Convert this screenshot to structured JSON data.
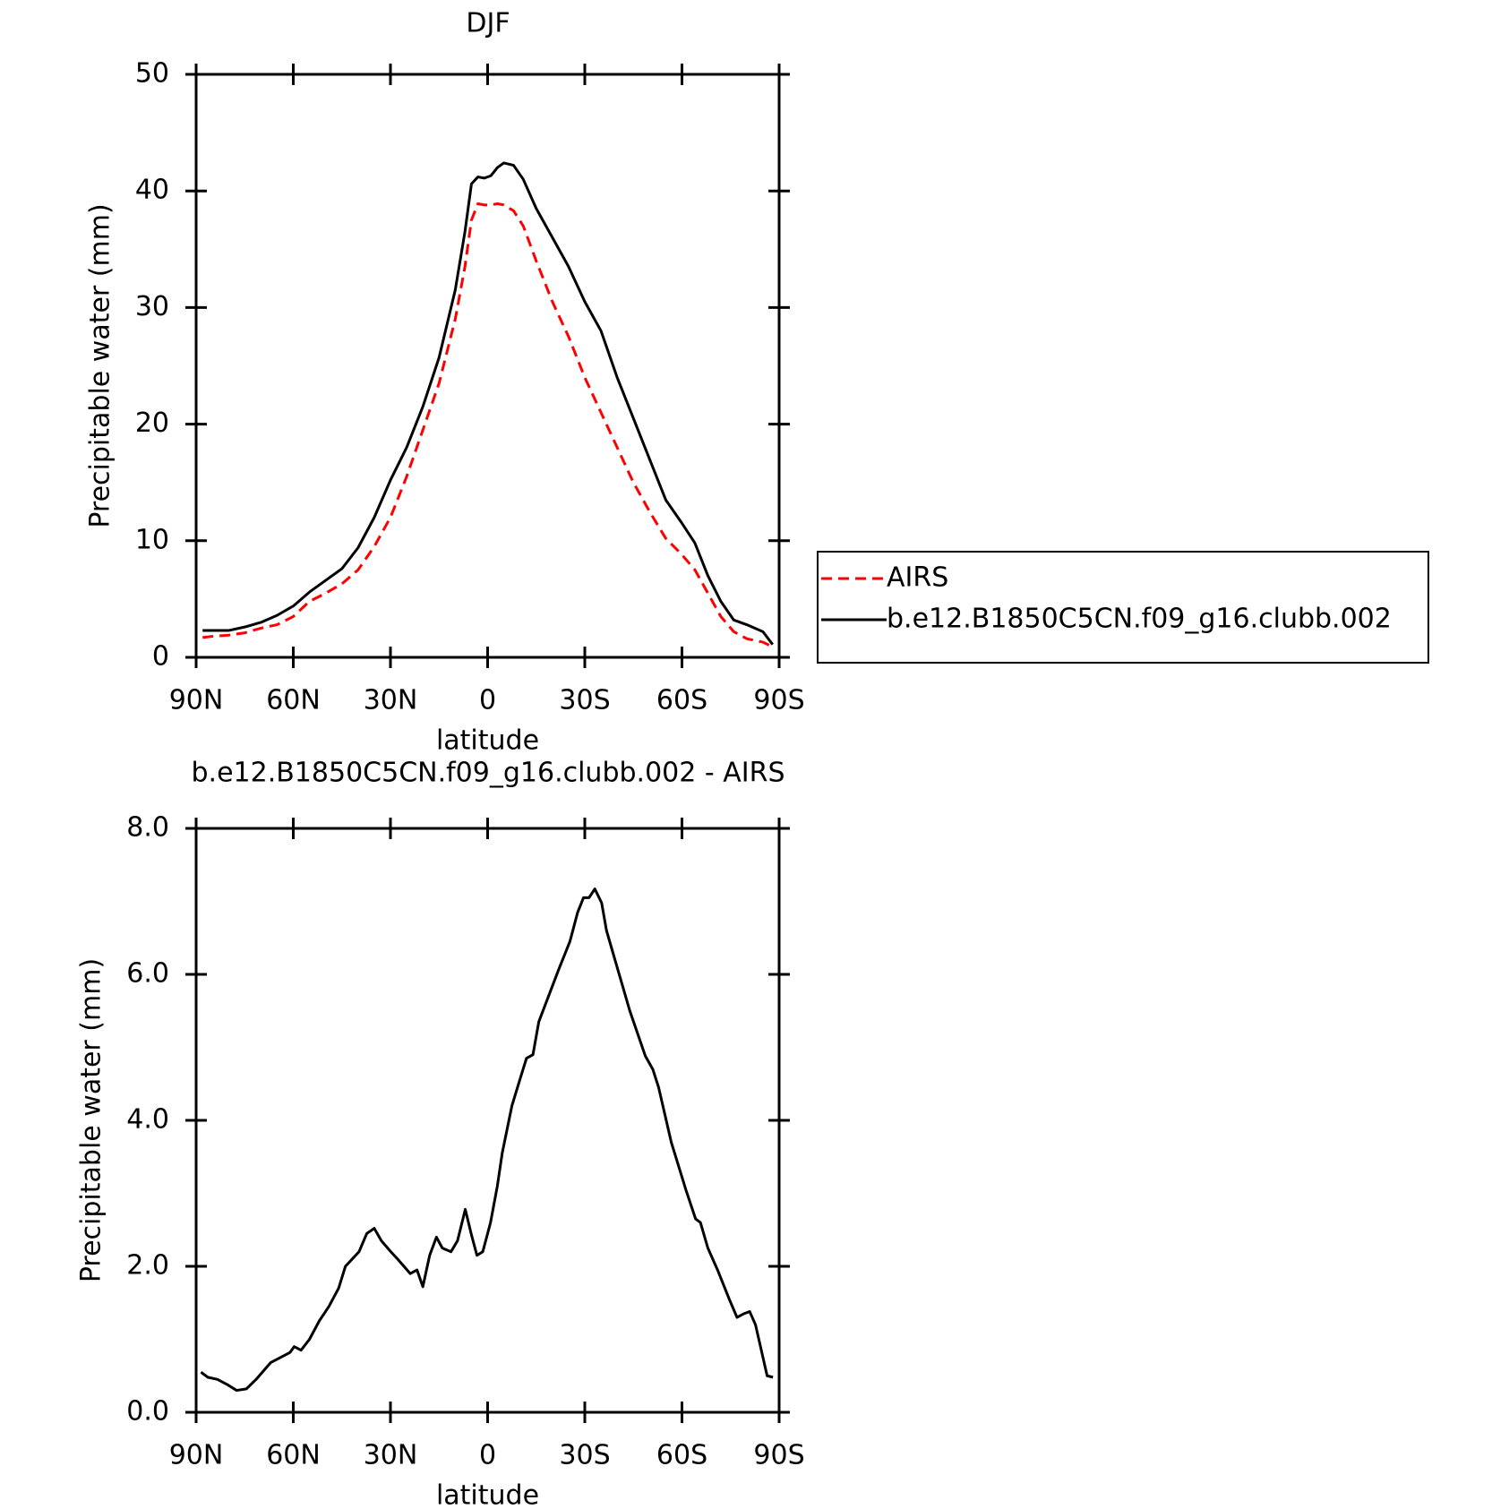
{
  "chart_data": [
    {
      "type": "line",
      "title": "DJF",
      "xlabel": "latitude",
      "ylabel": "Precipitable water (mm)",
      "xlim": [
        90,
        -90
      ],
      "ylim": [
        0,
        50
      ],
      "xticks": [
        {
          "value": 90,
          "label": "90N"
        },
        {
          "value": 60,
          "label": "60N"
        },
        {
          "value": 30,
          "label": "30N"
        },
        0,
        {
          "value": -30,
          "label": "30S"
        },
        {
          "value": -60,
          "label": "60S"
        },
        {
          "value": -90,
          "label": "90S"
        }
      ],
      "yticks": [
        0,
        10,
        20,
        30,
        40,
        50
      ],
      "legend": "right",
      "x": [
        88,
        85,
        80,
        75,
        70,
        65,
        60,
        55,
        50,
        45,
        40,
        35,
        30,
        25,
        20,
        15,
        10,
        7,
        5,
        3,
        1,
        -1,
        -3,
        -5,
        -8,
        -11,
        -15,
        -20,
        -25,
        -30,
        -35,
        -40,
        -45,
        -50,
        -55,
        -60,
        -64,
        -68,
        -72,
        -76,
        -80,
        -85,
        -88
      ],
      "series": [
        {
          "name": "AIRS",
          "color": "#ff0000",
          "linestyle": "dashed",
          "values": [
            1.7,
            1.8,
            1.9,
            2.1,
            2.5,
            2.8,
            3.5,
            4.8,
            5.5,
            6.3,
            7.5,
            9.5,
            12.0,
            15.5,
            19.5,
            23.5,
            29.0,
            33.5,
            37.5,
            38.9,
            38.8,
            38.8,
            38.9,
            38.8,
            38.3,
            37.0,
            34.0,
            30.5,
            27.5,
            24.0,
            21.0,
            18.0,
            15.0,
            12.5,
            10.2,
            8.8,
            7.5,
            5.5,
            3.5,
            2.2,
            1.6,
            1.3,
            0.9
          ]
        },
        {
          "name": "b.e12.B1850C5CN.f09_g16.clubb.002",
          "color": "#000000",
          "linestyle": "solid",
          "values": [
            2.3,
            2.3,
            2.3,
            2.6,
            3.0,
            3.6,
            4.4,
            5.6,
            6.6,
            7.6,
            9.4,
            12.0,
            15.2,
            18.0,
            21.5,
            25.7,
            31.5,
            36.5,
            40.6,
            41.2,
            41.1,
            41.3,
            42.0,
            42.4,
            42.2,
            41.0,
            38.5,
            36.0,
            33.5,
            30.5,
            28.0,
            24.0,
            20.5,
            17.0,
            13.5,
            11.5,
            9.8,
            7.0,
            4.8,
            3.2,
            2.8,
            2.2,
            1.1
          ]
        }
      ]
    },
    {
      "type": "line",
      "title": "b.e12.B1850C5CN.f09_g16.clubb.002 - AIRS",
      "xlabel": "latitude",
      "ylabel": "Precipitable water (mm)",
      "xlim": [
        90,
        -90
      ],
      "ylim": [
        0,
        8
      ],
      "xticks": [
        {
          "value": 90,
          "label": "90N"
        },
        {
          "value": 60,
          "label": "60N"
        },
        {
          "value": 30,
          "label": "30N"
        },
        0,
        {
          "value": -30,
          "label": "30S"
        },
        {
          "value": -60,
          "label": "60S"
        },
        {
          "value": -90,
          "label": "90S"
        }
      ],
      "yticks": [
        {
          "value": 0,
          "label": "0.0"
        },
        {
          "value": 2,
          "label": "2.0"
        },
        {
          "value": 4,
          "label": "4.0"
        },
        {
          "value": 6,
          "label": "6.0"
        },
        {
          "value": 8,
          "label": "8.0"
        }
      ],
      "x": [
        88.5,
        86.4,
        83.4,
        80.4,
        77.5,
        74.5,
        71.5,
        67,
        61,
        59.7,
        57.6,
        55,
        52,
        49,
        46,
        43.9,
        41.8,
        39.7,
        37.3,
        35,
        32.8,
        29.9,
        27.8,
        23.9,
        21.8,
        20,
        17.9,
        15.8,
        14,
        11.3,
        9.3,
        6.9,
        5.1,
        3.3,
        1.5,
        -0.9,
        -3,
        -4.5,
        -7.5,
        -9.9,
        -12,
        -14,
        -15.8,
        -18.8,
        -21.8,
        -25.4,
        -27.8,
        -29.6,
        -31.3,
        -33.1,
        -35.2,
        -36.7,
        -40.3,
        -43.9,
        -48.7,
        -51,
        -52.8,
        -56.7,
        -61.2,
        -64.2,
        -65.7,
        -68,
        -71,
        -74.6,
        -77,
        -79.1,
        -80.9,
        -82.7,
        -84.5,
        -86.3,
        -88.1
      ],
      "series": [
        {
          "color": "#000000",
          "linestyle": "solid",
          "values": [
            0.55,
            0.48,
            0.45,
            0.38,
            0.3,
            0.32,
            0.45,
            0.68,
            0.82,
            0.9,
            0.85,
            1.0,
            1.25,
            1.45,
            1.7,
            2.0,
            2.1,
            2.2,
            2.45,
            2.52,
            2.35,
            2.2,
            2.1,
            1.9,
            1.95,
            1.72,
            2.15,
            2.4,
            2.25,
            2.2,
            2.35,
            2.78,
            2.45,
            2.15,
            2.2,
            2.6,
            3.1,
            3.55,
            4.2,
            4.55,
            4.85,
            4.9,
            5.35,
            5.7,
            6.05,
            6.45,
            6.85,
            7.05,
            7.05,
            7.17,
            6.98,
            6.6,
            6.05,
            5.5,
            4.88,
            4.7,
            4.45,
            3.7,
            3.05,
            2.65,
            2.6,
            2.25,
            1.95,
            1.55,
            1.3,
            1.35,
            1.38,
            1.2,
            0.85,
            0.5,
            0.48
          ]
        }
      ]
    }
  ]
}
